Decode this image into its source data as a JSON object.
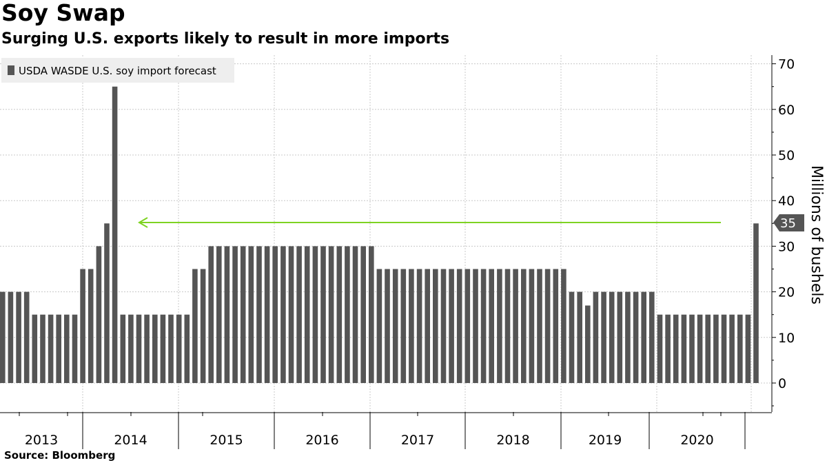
{
  "title": "Soy Swap",
  "subtitle": "Surging U.S. exports likely to result in more imports",
  "source": "Source: Bloomberg",
  "colors": {
    "bar": "#555555",
    "arrow": "#7ed321",
    "grid": "#c8c8c8",
    "legend_bg": "#eeeeee"
  },
  "chart_data": {
    "type": "bar",
    "title": "Soy Swap",
    "subtitle": "Surging U.S. exports likely to result in more imports",
    "ylabel": "Millions of bushels",
    "xlabel": "",
    "ylim": [
      -6,
      72
    ],
    "yticks": [
      0,
      10,
      20,
      30,
      40,
      50,
      60,
      70
    ],
    "year_labels": [
      "2013",
      "2014",
      "2015",
      "2016",
      "2017",
      "2018",
      "2019",
      "2020"
    ],
    "series": [
      {
        "name": "USDA WASDE U.S. soy import forecast",
        "values": [
          20,
          20,
          20,
          20,
          15,
          15,
          15,
          15,
          15,
          15,
          25,
          25,
          30,
          35,
          65,
          15,
          15,
          15,
          15,
          15,
          15,
          15,
          15,
          15,
          25,
          25,
          30,
          30,
          30,
          30,
          30,
          30,
          30,
          30,
          30,
          30,
          30,
          30,
          30,
          30,
          30,
          30,
          30,
          30,
          30,
          30,
          30,
          25,
          25,
          25,
          25,
          25,
          25,
          25,
          25,
          25,
          25,
          25,
          25,
          25,
          25,
          25,
          25,
          25,
          25,
          25,
          25,
          25,
          25,
          25,
          25,
          20,
          20,
          17,
          20,
          20,
          20,
          20,
          20,
          20,
          20,
          20,
          15,
          15,
          15,
          15,
          15,
          15,
          15,
          15,
          15,
          15,
          15,
          15,
          35
        ]
      }
    ],
    "last_value_label": "35",
    "grid": true,
    "legend_position": "top-left",
    "annotation": "green arrow pointing left at the 35 level"
  }
}
